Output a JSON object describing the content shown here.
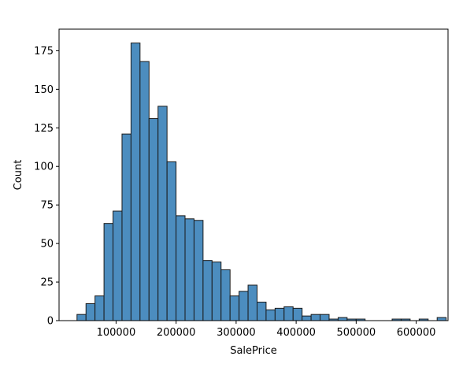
{
  "chart_data": {
    "type": "histogram",
    "xlabel": "SalePrice",
    "ylabel": "Count",
    "xlim": [
      5000,
      653000
    ],
    "ylim": [
      0,
      189
    ],
    "xticks": [
      100000,
      200000,
      300000,
      400000,
      500000,
      600000
    ],
    "xtick_labels": [
      "100000",
      "200000",
      "300000",
      "400000",
      "500000",
      "600000"
    ],
    "yticks": [
      0,
      25,
      50,
      75,
      100,
      125,
      150,
      175
    ],
    "ytick_labels": [
      "0",
      "25",
      "50",
      "75",
      "100",
      "125",
      "150",
      "175"
    ],
    "bin_start": 34900,
    "bin_width": 15000,
    "counts": [
      4,
      11,
      16,
      63,
      71,
      121,
      180,
      168,
      131,
      139,
      103,
      68,
      66,
      65,
      39,
      38,
      33,
      16,
      19,
      23,
      12,
      7,
      8,
      9,
      8,
      3,
      4,
      4,
      1,
      2,
      1,
      1,
      0,
      0,
      0,
      1,
      1,
      0,
      1,
      0,
      2
    ],
    "bar_color": "#4c8dbf",
    "edge_color": "#1a1a1a",
    "grid": false
  }
}
